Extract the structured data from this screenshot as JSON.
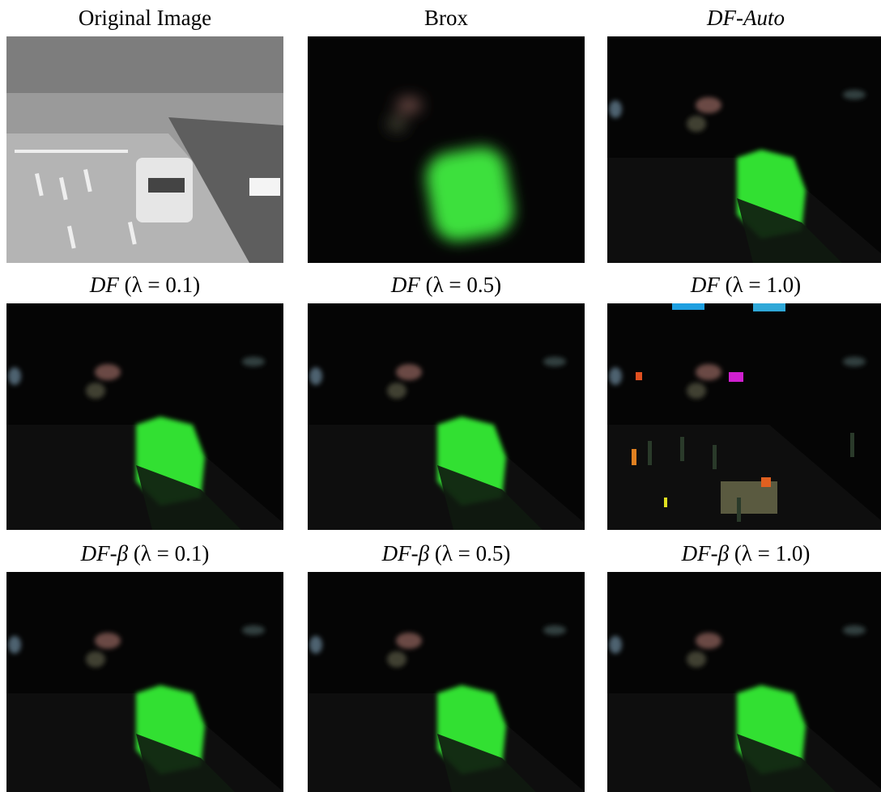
{
  "panels": [
    {
      "method": "Original Image"
    },
    {
      "method": "Brox"
    },
    {
      "method": "DF-Auto"
    },
    {
      "method": "DF",
      "setting": "(λ = 0.1)"
    },
    {
      "method": "DF",
      "setting": "(λ = 0.5)"
    },
    {
      "method": "DF",
      "setting": "(λ = 1.0)"
    },
    {
      "method": "DF-β",
      "setting": "(λ = 0.1)"
    },
    {
      "method": "DF-β",
      "setting": "(λ = 0.5)"
    },
    {
      "method": "DF-β",
      "setting": "(λ = 1.0)"
    }
  ]
}
